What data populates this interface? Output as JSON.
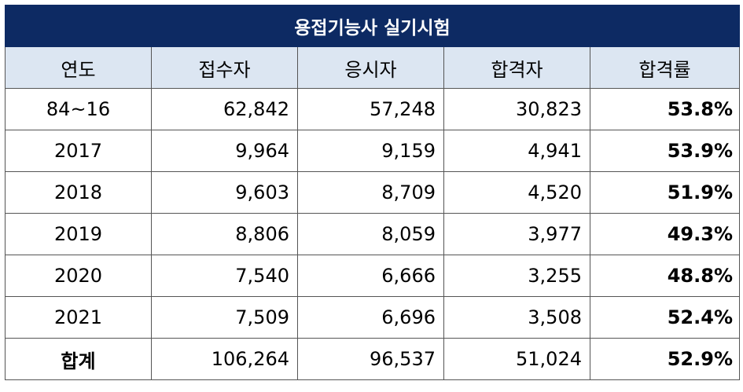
{
  "title": "용접기능사 실기시험",
  "headers": [
    "연도",
    "접수자",
    "응시자",
    "합격자",
    "합격률"
  ],
  "rows": [
    {
      "year": "84~16",
      "applicants": "62,842",
      "examinees": "57,248",
      "passers": "30,823",
      "rate": "53.8%"
    },
    {
      "year": "2017",
      "applicants": "9,964",
      "examinees": "9,159",
      "passers": "4,941",
      "rate": "53.9%"
    },
    {
      "year": "2018",
      "applicants": "9,603",
      "examinees": "8,709",
      "passers": "4,520",
      "rate": "51.9%"
    },
    {
      "year": "2019",
      "applicants": "8,806",
      "examinees": "8,059",
      "passers": "3,977",
      "rate": "49.3%"
    },
    {
      "year": "2020",
      "applicants": "7,540",
      "examinees": "6,666",
      "passers": "3,255",
      "rate": "48.8%"
    },
    {
      "year": "2021",
      "applicants": "7,509",
      "examinees": "6,696",
      "passers": "3,508",
      "rate": "52.4%"
    }
  ],
  "total": {
    "year": "합계",
    "applicants": "106,264",
    "examinees": "96,537",
    "passers": "51,024",
    "rate": "52.9%"
  },
  "colors": {
    "title_bg": "#0d2a63",
    "header_bg": "#dce6f2"
  }
}
